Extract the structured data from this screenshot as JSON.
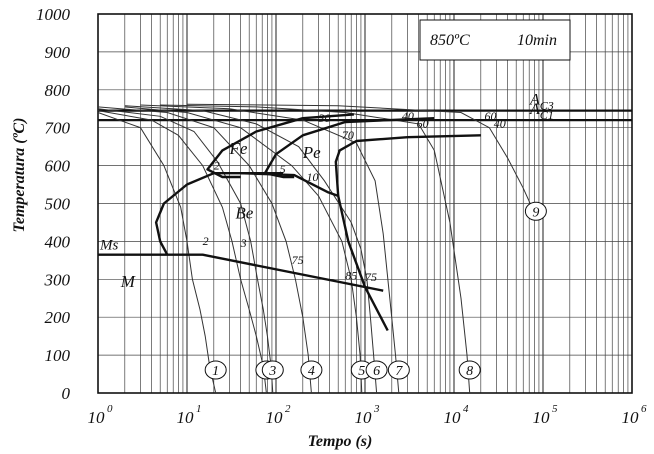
{
  "chart_data": {
    "type": "line",
    "title": "",
    "xlabel": "Tempo (s)",
    "ylabel": "Temperatura (ºC)",
    "xscale": "log",
    "xlim": [
      1,
      1000000
    ],
    "ylim": [
      0,
      1000
    ],
    "grid": true,
    "x_ticks": [
      {
        "base": "10",
        "exp": "0"
      },
      {
        "base": "10",
        "exp": "1"
      },
      {
        "base": "10",
        "exp": "2"
      },
      {
        "base": "10",
        "exp": "3"
      },
      {
        "base": "10",
        "exp": "4"
      },
      {
        "base": "10",
        "exp": "5"
      },
      {
        "base": "10",
        "exp": "6"
      }
    ],
    "y_ticks": [
      "0",
      "100",
      "200",
      "300",
      "400",
      "500",
      "600",
      "700",
      "800",
      "900",
      "1000"
    ],
    "condition_box": {
      "temperature": "850ºC",
      "time": "10min"
    },
    "critical_lines": [
      {
        "name": "A",
        "sub": "C3",
        "y": 745
      },
      {
        "name": "A",
        "sub": "C1",
        "y": 720
      }
    ],
    "ms_line": {
      "label": "Ms",
      "y": 365
    },
    "region_labels": [
      {
        "text": "Fe",
        "x": 30,
        "y": 630
      },
      {
        "text": "Pe",
        "x": 200,
        "y": 620
      },
      {
        "text": "Be",
        "x": 35,
        "y": 460
      },
      {
        "text": "M",
        "x": 1.8,
        "y": 280
      }
    ],
    "transformation_curves": [
      {
        "name": "ferrite-start",
        "points": [
          [
            750,
            735
          ],
          [
            200,
            725
          ],
          [
            60,
            690
          ],
          [
            25,
            640
          ],
          [
            17,
            590
          ],
          [
            25,
            570
          ],
          [
            40,
            570
          ]
        ]
      },
      {
        "name": "pearlite-start",
        "points": [
          [
            6000,
            725
          ],
          [
            600,
            715
          ],
          [
            200,
            680
          ],
          [
            100,
            630
          ],
          [
            75,
            580
          ],
          [
            120,
            570
          ],
          [
            160,
            570
          ]
        ]
      },
      {
        "name": "pearlite-finish",
        "points": [
          [
            20000,
            680
          ],
          [
            3000,
            675
          ],
          [
            800,
            665
          ],
          [
            520,
            640
          ],
          [
            470,
            610
          ],
          [
            500,
            520
          ]
        ]
      },
      {
        "name": "bainite-start",
        "points": [
          [
            120,
            580
          ],
          [
            20,
            580
          ],
          [
            10,
            550
          ],
          [
            5.5,
            500
          ],
          [
            4.5,
            450
          ],
          [
            5,
            400
          ],
          [
            6,
            365
          ]
        ]
      },
      {
        "name": "bainite-finish",
        "points": [
          [
            40,
            580
          ],
          [
            160,
            575
          ],
          [
            380,
            530
          ],
          [
            500,
            520
          ],
          [
            650,
            400
          ],
          [
            1000,
            280
          ],
          [
            1800,
            165
          ]
        ]
      },
      {
        "name": "martensite-line",
        "points": [
          [
            1,
            365
          ],
          [
            15,
            365
          ],
          [
            1600,
            270
          ]
        ]
      }
    ],
    "cooling_curves": [
      {
        "label": "1",
        "points": [
          [
            1,
            740
          ],
          [
            3,
            700
          ],
          [
            5.5,
            600
          ],
          [
            8.5,
            490
          ],
          [
            10,
            400
          ],
          [
            11.5,
            300
          ],
          [
            14,
            220
          ],
          [
            16,
            150
          ],
          [
            18,
            70
          ],
          [
            21,
            0
          ]
        ]
      },
      {
        "label": "2",
        "points": [
          [
            1,
            745
          ],
          [
            4,
            720
          ],
          [
            8,
            680
          ],
          [
            15,
            600
          ],
          [
            25,
            490
          ],
          [
            32,
            400
          ],
          [
            40,
            300
          ],
          [
            50,
            220
          ],
          [
            60,
            150
          ],
          [
            72,
            70
          ],
          [
            78,
            0
          ]
        ]
      },
      {
        "label": "3",
        "points": [
          [
            1,
            750
          ],
          [
            5,
            730
          ],
          [
            12,
            690
          ],
          [
            22,
            610
          ],
          [
            40,
            500
          ],
          [
            52,
            400
          ],
          [
            62,
            300
          ],
          [
            72,
            220
          ],
          [
            80,
            150
          ],
          [
            88,
            70
          ],
          [
            92,
            0
          ]
        ]
      },
      {
        "label": "4",
        "points": [
          [
            1,
            755
          ],
          [
            6,
            740
          ],
          [
            20,
            700
          ],
          [
            50,
            600
          ],
          [
            90,
            500
          ],
          [
            130,
            400
          ],
          [
            165,
            300
          ],
          [
            200,
            200
          ],
          [
            230,
            100
          ],
          [
            250,
            0
          ]
        ]
      },
      {
        "label": "5",
        "points": [
          [
            2,
            755
          ],
          [
            10,
            740
          ],
          [
            40,
            700
          ],
          [
            150,
            600
          ],
          [
            300,
            520
          ],
          [
            550,
            400
          ],
          [
            700,
            300
          ],
          [
            800,
            200
          ],
          [
            880,
            100
          ],
          [
            920,
            0
          ]
        ]
      },
      {
        "label": "6",
        "points": [
          [
            2,
            758
          ],
          [
            15,
            745
          ],
          [
            60,
            710
          ],
          [
            180,
            650
          ],
          [
            350,
            560
          ],
          [
            700,
            450
          ],
          [
            900,
            380
          ],
          [
            1050,
            300
          ],
          [
            1150,
            200
          ],
          [
            1250,
            100
          ],
          [
            1350,
            0
          ]
        ]
      },
      {
        "label": "7",
        "points": [
          [
            3,
            760
          ],
          [
            30,
            750
          ],
          [
            200,
            720
          ],
          [
            800,
            660
          ],
          [
            1300,
            560
          ],
          [
            1600,
            420
          ],
          [
            1900,
            250
          ],
          [
            2200,
            100
          ],
          [
            2400,
            0
          ]
        ]
      },
      {
        "label": "8",
        "points": [
          [
            5,
            760
          ],
          [
            60,
            755
          ],
          [
            600,
            740
          ],
          [
            4000,
            710
          ],
          [
            6000,
            640
          ],
          [
            9000,
            450
          ],
          [
            12000,
            250
          ],
          [
            14000,
            100
          ],
          [
            15000,
            0
          ]
        ]
      },
      {
        "label": "9",
        "points": [
          [
            10,
            762
          ],
          [
            500,
            758
          ],
          [
            12000,
            740
          ],
          [
            25000,
            700
          ],
          [
            40000,
            620
          ],
          [
            60000,
            540
          ],
          [
            75000,
            490
          ]
        ]
      }
    ],
    "annotations": [
      {
        "text": "2",
        "x": 20,
        "y": 590
      },
      {
        "text": "30",
        "x": 300,
        "y": 715
      },
      {
        "text": "40",
        "x": 2600,
        "y": 720
      },
      {
        "text": "60",
        "x": 3800,
        "y": 700
      },
      {
        "text": "60",
        "x": 22000,
        "y": 720
      },
      {
        "text": "40",
        "x": 28000,
        "y": 700
      },
      {
        "text": "70",
        "x": 550,
        "y": 670
      },
      {
        "text": "5",
        "x": 110,
        "y": 580
      },
      {
        "text": "10",
        "x": 220,
        "y": 560
      },
      {
        "text": "2",
        "x": 15,
        "y": 390
      },
      {
        "text": "3",
        "x": 40,
        "y": 385
      },
      {
        "text": "75",
        "x": 150,
        "y": 340
      },
      {
        "text": "85",
        "x": 600,
        "y": 300
      },
      {
        "text": "75",
        "x": 1000,
        "y": 295
      }
    ]
  }
}
